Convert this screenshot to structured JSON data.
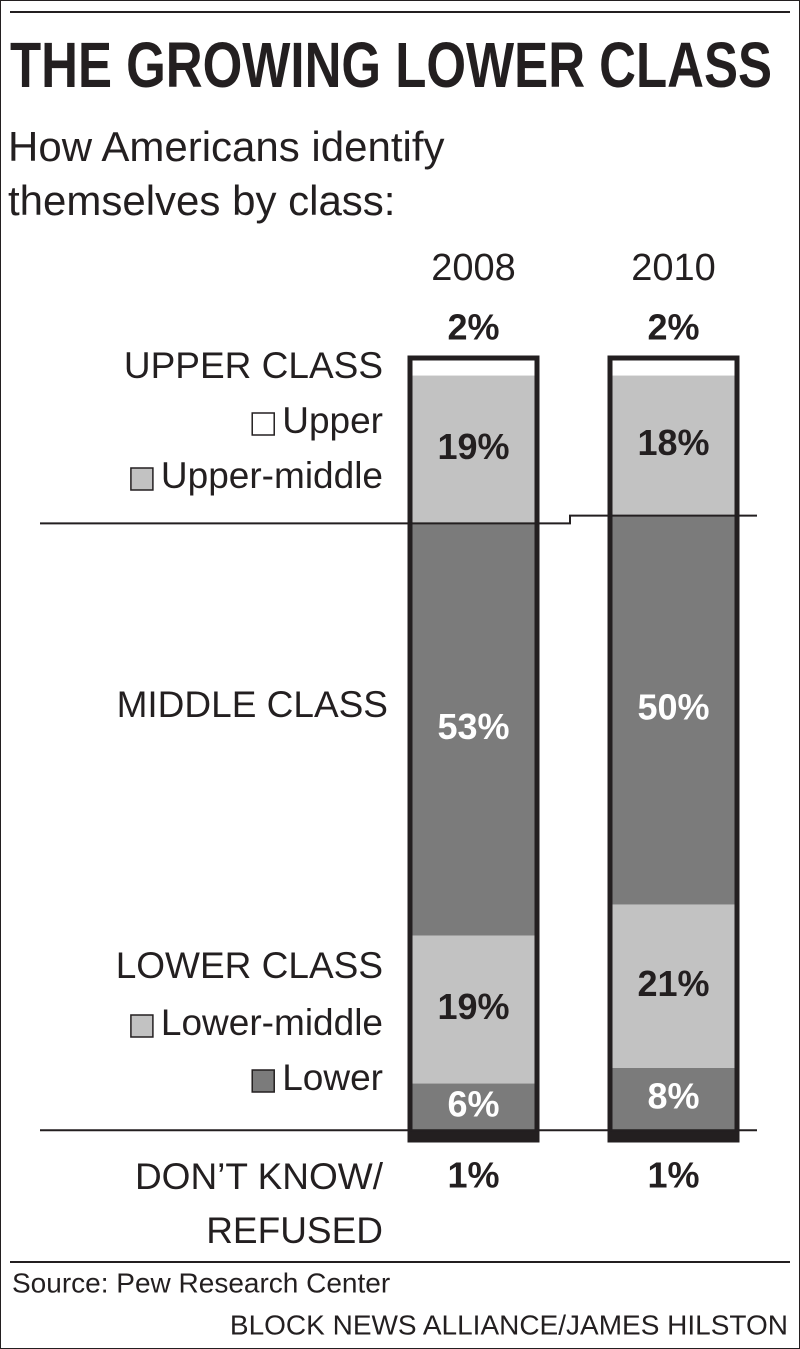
{
  "chart_data": {
    "type": "stacked-bar",
    "title": "THE GROWING LOWER CLASS",
    "subtitle": [
      "How Americans identify",
      "themselves by class:"
    ],
    "categories": [
      "2008",
      "2010"
    ],
    "class_labels": [
      "UPPER CLASS",
      "LOWER CLASS"
    ],
    "series": [
      {
        "name": "Upper",
        "color": "#ffffff",
        "label_color": "#231f20",
        "values": [
          2,
          2
        ],
        "value_labels": [
          "2%",
          "2%"
        ]
      },
      {
        "name": "Upper-middle",
        "color": "#c2c2c2",
        "label_color": "#231f20",
        "values": [
          19,
          18
        ],
        "value_labels": [
          "19%",
          "18%"
        ]
      },
      {
        "name": "MIDDLE CLASS",
        "color": "#7b7b7b",
        "label_color": "#ffffff",
        "values": [
          53,
          50
        ],
        "value_labels": [
          "53%",
          "50%"
        ]
      },
      {
        "name": "Lower-middle",
        "color": "#c2c2c2",
        "label_color": "#231f20",
        "values": [
          19,
          21
        ],
        "value_labels": [
          "19%",
          "21%"
        ]
      },
      {
        "name": "Lower",
        "color": "#7b7b7b",
        "label_color": "#ffffff",
        "values": [
          6,
          8
        ],
        "value_labels": [
          "6%",
          "8%"
        ]
      },
      {
        "name": "DON’T KNOW/\nREFUSED",
        "color": "#231f20",
        "label_color": "#231f20",
        "values": [
          1,
          1
        ],
        "value_labels": [
          "1%",
          "1%"
        ]
      }
    ],
    "source": "Source: Pew Research Center",
    "credit": "BLOCK NEWS ALLIANCE/JAMES HILSTON"
  }
}
